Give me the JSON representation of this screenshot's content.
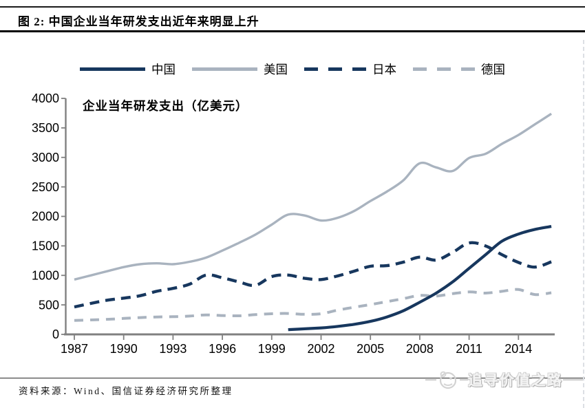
{
  "header": {
    "figure_title": "图 2: 中国企业当年研发支出近年来明显上升"
  },
  "legend": {
    "items": [
      {
        "label": "中国"
      },
      {
        "label": "美国"
      },
      {
        "label": "日本"
      },
      {
        "label": "德国"
      }
    ]
  },
  "colors": {
    "navy": "#17375E",
    "bluegray": "#A9B3BF",
    "axis": "#808080",
    "tick_text": "#000000"
  },
  "chart_data": {
    "type": "line",
    "title": "企业当年研发支出（亿美元）",
    "ylim": [
      0,
      4000
    ],
    "ytick_step": 500,
    "xticks": [
      1987,
      1990,
      1993,
      1996,
      1999,
      2002,
      2005,
      2008,
      2011,
      2014
    ],
    "x_range": [
      1987,
      2016
    ],
    "grid": false,
    "legend_position": "top",
    "series": [
      {
        "name": "中国",
        "color": "#17375E",
        "dash": null,
        "width": 4.2,
        "points": [
          [
            2000,
            80
          ],
          [
            2001,
            95
          ],
          [
            2002,
            110
          ],
          [
            2003,
            135
          ],
          [
            2004,
            170
          ],
          [
            2005,
            220
          ],
          [
            2006,
            295
          ],
          [
            2007,
            400
          ],
          [
            2008,
            545
          ],
          [
            2009,
            700
          ],
          [
            2010,
            890
          ],
          [
            2011,
            1120
          ],
          [
            2012,
            1350
          ],
          [
            2013,
            1580
          ],
          [
            2014,
            1700
          ],
          [
            2015,
            1780
          ],
          [
            2016,
            1830
          ]
        ]
      },
      {
        "name": "美国",
        "color": "#A9B3BF",
        "dash": null,
        "width": 3.4,
        "points": [
          [
            1987,
            930
          ],
          [
            1988,
            1000
          ],
          [
            1989,
            1070
          ],
          [
            1990,
            1140
          ],
          [
            1991,
            1190
          ],
          [
            1992,
            1205
          ],
          [
            1993,
            1190
          ],
          [
            1994,
            1230
          ],
          [
            1995,
            1300
          ],
          [
            1996,
            1420
          ],
          [
            1997,
            1550
          ],
          [
            1998,
            1690
          ],
          [
            1999,
            1860
          ],
          [
            2000,
            2030
          ],
          [
            2001,
            2015
          ],
          [
            2002,
            1930
          ],
          [
            2003,
            1975
          ],
          [
            2004,
            2090
          ],
          [
            2005,
            2260
          ],
          [
            2006,
            2420
          ],
          [
            2007,
            2610
          ],
          [
            2008,
            2900
          ],
          [
            2009,
            2830
          ],
          [
            2010,
            2770
          ],
          [
            2011,
            2990
          ],
          [
            2012,
            3060
          ],
          [
            2013,
            3230
          ],
          [
            2014,
            3380
          ],
          [
            2015,
            3560
          ],
          [
            2016,
            3740
          ]
        ]
      },
      {
        "name": "日本",
        "color": "#17375E",
        "dash": [
          14,
          9
        ],
        "width": 4.4,
        "points": [
          [
            1987,
            465
          ],
          [
            1988,
            525
          ],
          [
            1989,
            580
          ],
          [
            1990,
            615
          ],
          [
            1991,
            655
          ],
          [
            1992,
            730
          ],
          [
            1993,
            780
          ],
          [
            1994,
            850
          ],
          [
            1995,
            1005
          ],
          [
            1996,
            960
          ],
          [
            1997,
            890
          ],
          [
            1998,
            830
          ],
          [
            1999,
            980
          ],
          [
            2000,
            1005
          ],
          [
            2001,
            950
          ],
          [
            2002,
            930
          ],
          [
            2003,
            990
          ],
          [
            2004,
            1070
          ],
          [
            2005,
            1155
          ],
          [
            2006,
            1165
          ],
          [
            2007,
            1225
          ],
          [
            2008,
            1310
          ],
          [
            2009,
            1260
          ],
          [
            2010,
            1390
          ],
          [
            2011,
            1550
          ],
          [
            2012,
            1500
          ],
          [
            2013,
            1350
          ],
          [
            2014,
            1220
          ],
          [
            2015,
            1140
          ],
          [
            2016,
            1230
          ]
        ]
      },
      {
        "name": "德国",
        "color": "#A9B3BF",
        "dash": [
          13,
          10
        ],
        "width": 4.0,
        "points": [
          [
            1987,
            235
          ],
          [
            1988,
            245
          ],
          [
            1989,
            255
          ],
          [
            1990,
            270
          ],
          [
            1991,
            285
          ],
          [
            1992,
            295
          ],
          [
            1993,
            300
          ],
          [
            1994,
            310
          ],
          [
            1995,
            330
          ],
          [
            1996,
            320
          ],
          [
            1997,
            315
          ],
          [
            1998,
            335
          ],
          [
            1999,
            350
          ],
          [
            2000,
            355
          ],
          [
            2001,
            340
          ],
          [
            2002,
            350
          ],
          [
            2003,
            410
          ],
          [
            2004,
            460
          ],
          [
            2005,
            505
          ],
          [
            2006,
            555
          ],
          [
            2007,
            605
          ],
          [
            2008,
            660
          ],
          [
            2009,
            650
          ],
          [
            2010,
            690
          ],
          [
            2011,
            720
          ],
          [
            2012,
            700
          ],
          [
            2013,
            730
          ],
          [
            2014,
            760
          ],
          [
            2015,
            675
          ],
          [
            2016,
            705
          ]
        ]
      }
    ]
  },
  "footer": {
    "source": "资料来源：Wind、国信证券经济研究所整理"
  },
  "watermark": {
    "text": "追寻价值之路"
  }
}
